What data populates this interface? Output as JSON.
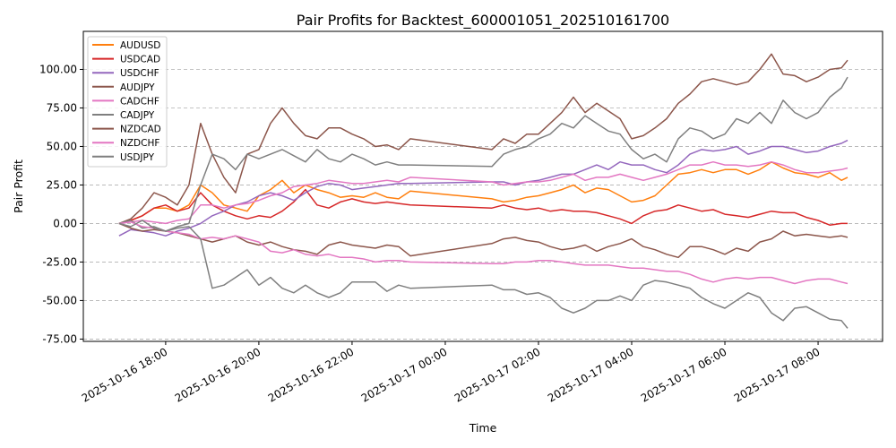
{
  "chart_data": {
    "type": "line",
    "title": "Pair Profits for Backtest_600001051_202510161700",
    "xlabel": "Time",
    "ylabel": "Pair Profit",
    "ylim": [
      -76.5,
      124.7
    ],
    "xlim": [
      "2025-10-16 16:14",
      "2025-10-17 09:23"
    ],
    "grid": "y-dashed",
    "legend_position": "top-left",
    "yticks": [
      -75,
      -50,
      -25,
      0,
      25,
      50,
      75,
      100
    ],
    "ytick_labels": [
      "-75.00",
      "-50.00",
      "-25.00",
      "0.00",
      "25.00",
      "50.00",
      "75.00",
      "100.00"
    ],
    "xticks": [
      "2025-10-16 18:00",
      "2025-10-16 20:00",
      "2025-10-16 22:00",
      "2025-10-17 00:00",
      "2025-10-17 02:00",
      "2025-10-17 04:00",
      "2025-10-17 06:00",
      "2025-10-17 08:00"
    ],
    "xtick_labels": [
      "2025-10-16 18:00",
      "2025-10-16 20:00",
      "2025-10-16 22:00",
      "2025-10-17 00:00",
      "2025-10-17 02:00",
      "2025-10-17 04:00",
      "2025-10-17 06:00",
      "2025-10-17 08:00"
    ],
    "x": [
      "2025-10-16 17:00",
      "2025-10-16 17:15",
      "2025-10-16 17:30",
      "2025-10-16 17:45",
      "2025-10-16 18:00",
      "2025-10-16 18:15",
      "2025-10-16 18:30",
      "2025-10-16 18:45",
      "2025-10-16 19:00",
      "2025-10-16 19:15",
      "2025-10-16 19:30",
      "2025-10-16 19:45",
      "2025-10-16 20:00",
      "2025-10-16 20:15",
      "2025-10-16 20:30",
      "2025-10-16 20:45",
      "2025-10-16 21:00",
      "2025-10-16 21:15",
      "2025-10-16 21:30",
      "2025-10-16 21:45",
      "2025-10-16 22:00",
      "2025-10-16 22:15",
      "2025-10-16 22:30",
      "2025-10-16 22:45",
      "2025-10-16 23:00",
      "2025-10-16 23:15",
      "2025-10-17 01:00",
      "2025-10-17 01:15",
      "2025-10-17 01:30",
      "2025-10-17 01:45",
      "2025-10-17 02:00",
      "2025-10-17 02:15",
      "2025-10-17 02:30",
      "2025-10-17 02:45",
      "2025-10-17 03:00",
      "2025-10-17 03:15",
      "2025-10-17 03:30",
      "2025-10-17 03:45",
      "2025-10-17 04:00",
      "2025-10-17 04:15",
      "2025-10-17 04:30",
      "2025-10-17 04:45",
      "2025-10-17 05:00",
      "2025-10-17 05:15",
      "2025-10-17 05:30",
      "2025-10-17 05:45",
      "2025-10-17 06:00",
      "2025-10-17 06:15",
      "2025-10-17 06:30",
      "2025-10-17 06:45",
      "2025-10-17 07:00",
      "2025-10-17 07:15",
      "2025-10-17 07:30",
      "2025-10-17 07:45",
      "2025-10-17 08:00",
      "2025-10-17 08:15",
      "2025-10-17 08:30",
      "2025-10-17 08:38"
    ],
    "series": [
      {
        "name": "AUDUSD",
        "color": "#ff7f0e",
        "values": [
          0,
          2,
          5,
          10,
          10,
          8,
          12,
          25,
          20,
          12,
          10,
          8,
          18,
          22,
          28,
          20,
          25,
          22,
          20,
          17,
          18,
          17,
          20,
          17,
          16,
          21,
          16,
          14,
          15,
          17,
          18,
          20,
          22,
          25,
          20,
          23,
          22,
          18,
          14,
          15,
          18,
          25,
          32,
          33,
          35,
          33,
          35,
          35,
          32,
          35,
          40,
          36,
          33,
          32,
          30,
          33,
          28,
          30
        ]
      },
      {
        "name": "USDCAD",
        "color": "#d62728",
        "values": [
          0,
          2,
          5,
          10,
          12,
          8,
          10,
          20,
          12,
          8,
          5,
          3,
          5,
          4,
          8,
          14,
          22,
          12,
          10,
          14,
          16,
          14,
          13,
          14,
          13,
          12,
          10,
          12,
          10,
          9,
          10,
          8,
          9,
          8,
          8,
          7,
          5,
          3,
          0,
          5,
          8,
          9,
          12,
          10,
          8,
          9,
          6,
          5,
          4,
          6,
          8,
          7,
          7,
          4,
          2,
          -1,
          0,
          0
        ]
      },
      {
        "name": "USDCHF",
        "color": "#9467bd",
        "values": [
          -8,
          -4,
          -5,
          -6,
          -8,
          -5,
          -3,
          0,
          5,
          8,
          12,
          14,
          18,
          20,
          18,
          15,
          20,
          24,
          26,
          25,
          22,
          23,
          24,
          25,
          26,
          26,
          27,
          27,
          25,
          27,
          28,
          30,
          32,
          32,
          35,
          38,
          35,
          40,
          38,
          38,
          35,
          33,
          38,
          45,
          48,
          47,
          48,
          50,
          45,
          47,
          50,
          50,
          48,
          46,
          47,
          50,
          52,
          54
        ]
      },
      {
        "name": "AUDJPY",
        "color": "#8c564b",
        "values": [
          0,
          3,
          10,
          20,
          17,
          12,
          25,
          65,
          45,
          30,
          20,
          45,
          48,
          65,
          75,
          65,
          57,
          55,
          62,
          62,
          58,
          55,
          50,
          51,
          48,
          55,
          48,
          55,
          52,
          58,
          58,
          65,
          72,
          82,
          72,
          78,
          73,
          68,
          55,
          57,
          62,
          68,
          78,
          84,
          92,
          94,
          92,
          90,
          92,
          100,
          110,
          97,
          96,
          92,
          95,
          100,
          101,
          106
        ]
      },
      {
        "name": "CADCHF",
        "color": "#e377c2",
        "values": [
          0,
          1,
          2,
          1,
          0,
          2,
          3,
          12,
          12,
          10,
          12,
          13,
          15,
          18,
          20,
          24,
          25,
          26,
          28,
          27,
          26,
          26,
          27,
          28,
          27,
          30,
          27,
          25,
          26,
          27,
          27,
          28,
          30,
          32,
          28,
          30,
          30,
          32,
          30,
          28,
          30,
          32,
          35,
          38,
          38,
          40,
          38,
          38,
          37,
          38,
          40,
          38,
          35,
          33,
          33,
          34,
          35,
          36
        ]
      },
      {
        "name": "CADJPY",
        "color": "#7f7f7f",
        "values": [
          0,
          2,
          -3,
          -2,
          -5,
          -2,
          0,
          25,
          45,
          42,
          35,
          45,
          42,
          45,
          48,
          44,
          40,
          48,
          42,
          40,
          45,
          42,
          38,
          40,
          38,
          38,
          37,
          45,
          48,
          50,
          55,
          58,
          65,
          62,
          70,
          65,
          60,
          58,
          48,
          42,
          45,
          40,
          55,
          62,
          60,
          55,
          58,
          68,
          65,
          72,
          65,
          80,
          72,
          68,
          72,
          82,
          88,
          95
        ]
      },
      {
        "name": "NZDCAD",
        "color": "#8c564b",
        "values": [
          0,
          -3,
          -5,
          -4,
          -5,
          -6,
          -8,
          -10,
          -12,
          -10,
          -8,
          -12,
          -14,
          -12,
          -15,
          -17,
          -18,
          -20,
          -14,
          -12,
          -14,
          -15,
          -16,
          -14,
          -15,
          -21,
          -13,
          -10,
          -9,
          -11,
          -12,
          -15,
          -17,
          -16,
          -14,
          -18,
          -15,
          -13,
          -10,
          -15,
          -17,
          -20,
          -22,
          -15,
          -15,
          -17,
          -20,
          -16,
          -18,
          -12,
          -10,
          -5,
          -8,
          -7,
          -8,
          -9,
          -8,
          -9
        ]
      },
      {
        "name": "NZDCHF",
        "color": "#e377c2",
        "values": [
          0,
          1,
          -2,
          -3,
          -5,
          -6,
          -7,
          -10,
          -9,
          -10,
          -8,
          -10,
          -12,
          -18,
          -19,
          -17,
          -20,
          -21,
          -20,
          -22,
          -22,
          -23,
          -25,
          -24,
          -24,
          -25,
          -26,
          -26,
          -25,
          -25,
          -24,
          -24,
          -25,
          -26,
          -27,
          -27,
          -27,
          -28,
          -29,
          -29,
          -30,
          -31,
          -31,
          -33,
          -36,
          -38,
          -36,
          -35,
          -36,
          -35,
          -35,
          -37,
          -39,
          -37,
          -36,
          -36,
          -38,
          -39
        ]
      },
      {
        "name": "USDJPY",
        "color": "#7f7f7f",
        "values": [
          0,
          -2,
          2,
          -3,
          -5,
          -3,
          -2,
          -10,
          -42,
          -40,
          -35,
          -30,
          -40,
          -35,
          -42,
          -45,
          -40,
          -45,
          -48,
          -45,
          -38,
          -38,
          -38,
          -44,
          -40,
          -42,
          -40,
          -43,
          -43,
          -46,
          -45,
          -48,
          -55,
          -58,
          -55,
          -50,
          -50,
          -47,
          -50,
          -40,
          -37,
          -38,
          -40,
          -42,
          -48,
          -52,
          -55,
          -50,
          -45,
          -48,
          -58,
          -63,
          -55,
          -54,
          -58,
          -62,
          -63,
          -68
        ]
      }
    ]
  }
}
